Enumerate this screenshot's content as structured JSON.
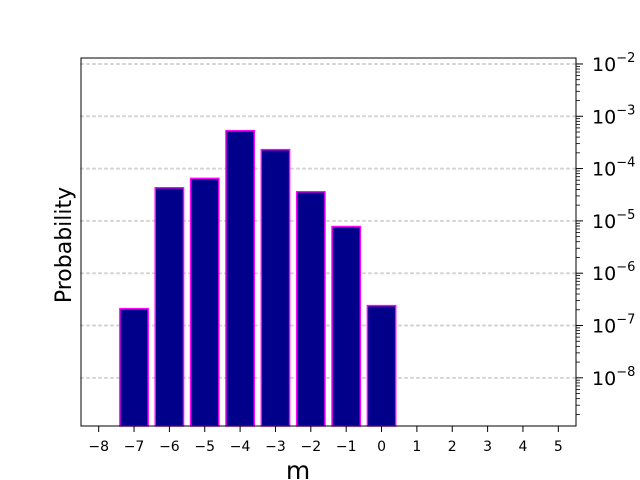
{
  "chart_data": {
    "type": "bar",
    "categories": [
      -7,
      -6,
      -5,
      -4,
      -3,
      -2,
      -1,
      0
    ],
    "values": [
      2.1e-07,
      4.3e-05,
      6.5e-05,
      0.00053,
      0.00023,
      3.6e-05,
      7.8e-06,
      2.4e-07
    ],
    "title": "",
    "xlabel": "m",
    "ylabel": "Probability",
    "xlim": [
      -8.5,
      5.5
    ],
    "ylim": [
      1.2e-09,
      0.013
    ],
    "yscale": "log",
    "xticks": [
      -8,
      -7,
      -6,
      -5,
      -4,
      -3,
      -2,
      -1,
      0,
      1,
      2,
      3,
      4,
      5
    ],
    "xtick_labels": [
      "−8",
      "−7",
      "−6",
      "−5",
      "−4",
      "−3",
      "−2",
      "−1",
      "0",
      "1",
      "2",
      "3",
      "4",
      "5"
    ],
    "yticks": [
      {
        "base": "10",
        "exp": "−2",
        "value": 0.01
      },
      {
        "base": "10",
        "exp": "−3",
        "value": 0.001
      },
      {
        "base": "10",
        "exp": "−4",
        "value": 0.0001
      },
      {
        "base": "10",
        "exp": "−5",
        "value": 1e-05
      },
      {
        "base": "10",
        "exp": "−6",
        "value": 1e-06
      },
      {
        "base": "10",
        "exp": "−7",
        "value": 1e-07
      },
      {
        "base": "10",
        "exp": "−8",
        "value": 1e-08
      }
    ],
    "y_axis_side": "right",
    "grid": "horizontal dotted",
    "colors": {
      "bar_fill": "#00008b",
      "bar_edge": "#ff00ff",
      "grid": "#d3d3d3",
      "axis": "#000000"
    }
  }
}
